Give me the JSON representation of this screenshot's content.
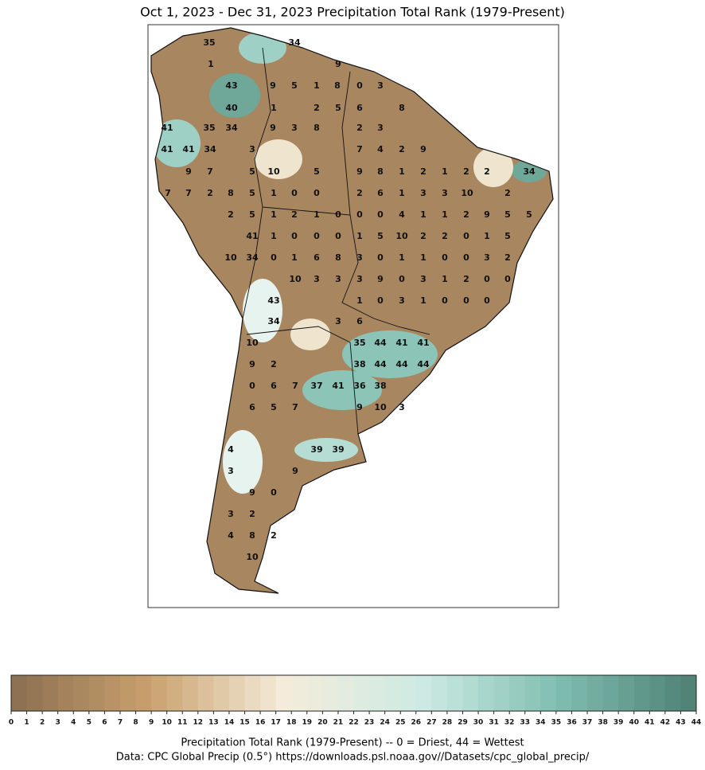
{
  "title": "Oct 1, 2023 - Dec 31, 2023 Precipitation Total Rank (1979-Present)",
  "map": {
    "labels": [
      35,
      34,
      1,
      9,
      43,
      9,
      5,
      1,
      8,
      0,
      3,
      40,
      1,
      2,
      5,
      6,
      8,
      41,
      35,
      34,
      9,
      3,
      8,
      2,
      3,
      41,
      41,
      34,
      3,
      7,
      4,
      2,
      9,
      9,
      7,
      5,
      10,
      5,
      9,
      8,
      1,
      2,
      1,
      2,
      2,
      34,
      7,
      7,
      2,
      8,
      5,
      1,
      0,
      0,
      2,
      6,
      1,
      3,
      3,
      10,
      2,
      2,
      5,
      1,
      2,
      1,
      0,
      0,
      0,
      4,
      1,
      1,
      2,
      9,
      5,
      5,
      41,
      1,
      0,
      0,
      0,
      1,
      5,
      10,
      2,
      2,
      0,
      1,
      5,
      10,
      34,
      0,
      1,
      6,
      8,
      3,
      0,
      1,
      1,
      0,
      0,
      3,
      2,
      10,
      3,
      3,
      3,
      9,
      0,
      3,
      1,
      2,
      0,
      0,
      43,
      1,
      0,
      3,
      1,
      0,
      0,
      0,
      34,
      3,
      6,
      10,
      35,
      44,
      41,
      41,
      9,
      2,
      38,
      44,
      44,
      44,
      0,
      6,
      7,
      37,
      41,
      36,
      38,
      6,
      5,
      7,
      9,
      10,
      3,
      4,
      39,
      39,
      3,
      9,
      9,
      0,
      3,
      2,
      4,
      8,
      2,
      10
    ]
  },
  "colorbar": {
    "ticks": [
      0,
      1,
      2,
      3,
      4,
      5,
      6,
      7,
      8,
      9,
      10,
      11,
      12,
      13,
      14,
      15,
      16,
      17,
      18,
      19,
      20,
      21,
      22,
      23,
      24,
      25,
      26,
      27,
      28,
      29,
      30,
      31,
      32,
      33,
      34,
      35,
      36,
      37,
      38,
      39,
      40,
      41,
      42,
      43,
      44
    ],
    "colormap": [
      "#8a6e52",
      "#c9a06c",
      "#f4ecdb",
      "#cdebe4",
      "#7fbdb0",
      "#4e7f74"
    ],
    "label": "Precipitation Total Rank (1979-Present) -- 0 = Driest, 44 = Wettest"
  },
  "credit": "Data: CPC Global Precip (0.5°) https://downloads.psl.noaa.gov//Datasets/cpc_global_precip/"
}
